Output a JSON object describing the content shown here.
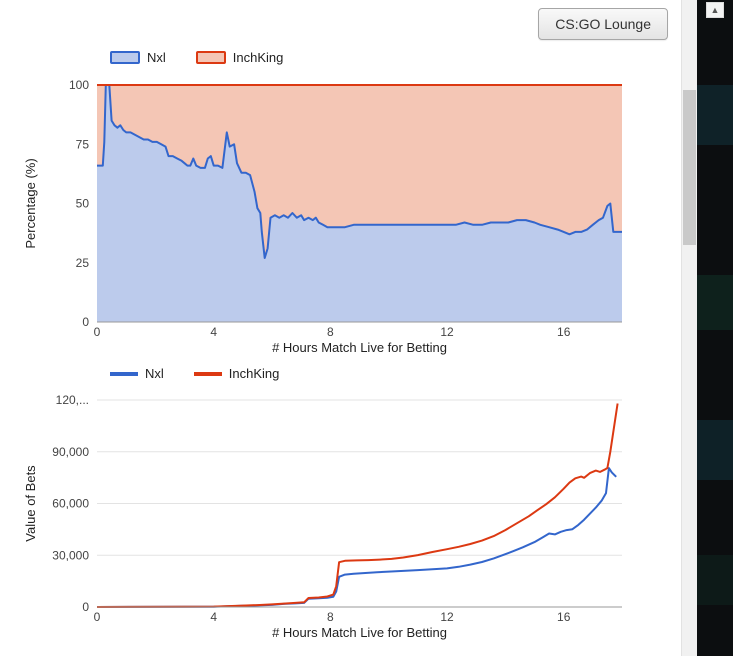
{
  "header": {
    "lounge_button": "CS:GO Lounge"
  },
  "scrollbar": {
    "up_arrow": "▲"
  },
  "chart_data": [
    {
      "name": "percentage",
      "type": "area",
      "stacked_to_100": true,
      "title": "",
      "xlabel": "# Hours Match Live for Betting",
      "ylabel": "Percentage (%)",
      "x_range": [
        0,
        18
      ],
      "y_range": [
        0,
        100
      ],
      "legend_position": "top",
      "grid": true,
      "x_ticks": [
        {
          "v": 0,
          "label": "0"
        },
        {
          "v": 4,
          "label": "4"
        },
        {
          "v": 8,
          "label": "8"
        },
        {
          "v": 12,
          "label": "12"
        },
        {
          "v": 16,
          "label": "16"
        }
      ],
      "y_ticks": [
        {
          "v": 0,
          "label": "0"
        },
        {
          "v": 25,
          "label": "25"
        },
        {
          "v": 50,
          "label": "50"
        },
        {
          "v": 75,
          "label": "75"
        },
        {
          "v": 100,
          "label": "100"
        }
      ],
      "series": [
        {
          "name": "Nxl",
          "color": "#3366cc",
          "fill": "#bccbec",
          "points": [
            [
              0,
              66
            ],
            [
              0.2,
              66
            ],
            [
              0.25,
              76
            ],
            [
              0.3,
              100
            ],
            [
              0.42,
              100
            ],
            [
              0.5,
              85
            ],
            [
              0.6,
              83
            ],
            [
              0.7,
              82
            ],
            [
              0.8,
              83
            ],
            [
              0.9,
              81
            ],
            [
              1.0,
              80
            ],
            [
              1.15,
              80
            ],
            [
              1.3,
              79
            ],
            [
              1.45,
              78
            ],
            [
              1.6,
              77
            ],
            [
              1.75,
              77
            ],
            [
              1.9,
              76
            ],
            [
              2.05,
              76
            ],
            [
              2.2,
              75
            ],
            [
              2.35,
              74
            ],
            [
              2.45,
              70
            ],
            [
              2.6,
              70
            ],
            [
              2.75,
              69
            ],
            [
              2.9,
              68
            ],
            [
              3.0,
              67
            ],
            [
              3.1,
              66
            ],
            [
              3.2,
              66
            ],
            [
              3.3,
              69
            ],
            [
              3.4,
              66
            ],
            [
              3.55,
              65
            ],
            [
              3.7,
              65
            ],
            [
              3.8,
              69
            ],
            [
              3.9,
              70
            ],
            [
              4.0,
              66
            ],
            [
              4.15,
              66
            ],
            [
              4.3,
              65
            ],
            [
              4.45,
              80
            ],
            [
              4.55,
              74
            ],
            [
              4.7,
              75
            ],
            [
              4.8,
              67
            ],
            [
              4.95,
              63
            ],
            [
              5.1,
              63
            ],
            [
              5.25,
              62
            ],
            [
              5.4,
              55
            ],
            [
              5.5,
              48
            ],
            [
              5.6,
              46
            ],
            [
              5.65,
              38
            ],
            [
              5.75,
              27
            ],
            [
              5.85,
              31
            ],
            [
              5.95,
              44
            ],
            [
              6.1,
              45
            ],
            [
              6.25,
              44
            ],
            [
              6.4,
              45
            ],
            [
              6.55,
              44
            ],
            [
              6.7,
              46
            ],
            [
              6.85,
              44
            ],
            [
              7.0,
              45
            ],
            [
              7.1,
              43
            ],
            [
              7.25,
              44
            ],
            [
              7.4,
              43
            ],
            [
              7.5,
              44
            ],
            [
              7.6,
              42
            ],
            [
              7.75,
              41
            ],
            [
              7.9,
              40
            ],
            [
              8.2,
              40
            ],
            [
              8.5,
              40
            ],
            [
              8.8,
              41
            ],
            [
              9.2,
              41
            ],
            [
              9.6,
              41
            ],
            [
              10,
              41
            ],
            [
              10.5,
              41
            ],
            [
              11,
              41
            ],
            [
              11.5,
              41
            ],
            [
              12,
              41
            ],
            [
              12.3,
              41
            ],
            [
              12.6,
              42
            ],
            [
              12.9,
              41
            ],
            [
              13.2,
              41
            ],
            [
              13.5,
              42
            ],
            [
              13.8,
              42
            ],
            [
              14.1,
              42
            ],
            [
              14.4,
              43
            ],
            [
              14.7,
              43
            ],
            [
              15,
              42
            ],
            [
              15.2,
              41
            ],
            [
              15.5,
              40
            ],
            [
              15.8,
              39
            ],
            [
              16,
              38
            ],
            [
              16.2,
              37
            ],
            [
              16.4,
              38
            ],
            [
              16.6,
              38
            ],
            [
              16.8,
              39
            ],
            [
              17,
              41
            ],
            [
              17.2,
              43
            ],
            [
              17.35,
              44
            ],
            [
              17.5,
              49
            ],
            [
              17.6,
              50
            ],
            [
              17.7,
              38
            ],
            [
              18,
              38
            ]
          ]
        },
        {
          "name": "InchKing",
          "color": "#dc3912",
          "fill": "#f4c6b5",
          "points": [
            [
              0,
              100
            ],
            [
              18,
              100
            ]
          ]
        }
      ]
    },
    {
      "name": "value-of-bets",
      "type": "line",
      "title": "",
      "xlabel": "# Hours Match Live for Betting",
      "ylabel": "Value of Bets",
      "x_range": [
        0,
        18
      ],
      "y_range": [
        0,
        120000
      ],
      "legend_position": "top",
      "grid": true,
      "x_ticks": [
        {
          "v": 0,
          "label": "0"
        },
        {
          "v": 4,
          "label": "4"
        },
        {
          "v": 8,
          "label": "8"
        },
        {
          "v": 12,
          "label": "12"
        },
        {
          "v": 16,
          "label": "16"
        }
      ],
      "y_ticks": [
        {
          "v": 0,
          "label": "0"
        },
        {
          "v": 30000,
          "label": "30,000"
        },
        {
          "v": 60000,
          "label": "60,000"
        },
        {
          "v": 90000,
          "label": "90,000"
        },
        {
          "v": 120000,
          "label": "120,..."
        }
      ],
      "series": [
        {
          "name": "Nxl",
          "color": "#3366cc",
          "points": [
            [
              0,
              0
            ],
            [
              3,
              100
            ],
            [
              4,
              200
            ],
            [
              4.5,
              400
            ],
            [
              5,
              700
            ],
            [
              5.5,
              900
            ],
            [
              6,
              1200
            ],
            [
              6.4,
              1800
            ],
            [
              6.8,
              2100
            ],
            [
              7.1,
              2400
            ],
            [
              7.25,
              4800
            ],
            [
              7.6,
              5100
            ],
            [
              7.9,
              5400
            ],
            [
              8.1,
              5900
            ],
            [
              8.2,
              9000
            ],
            [
              8.3,
              17500
            ],
            [
              8.5,
              18800
            ],
            [
              8.8,
              19300
            ],
            [
              9.2,
              19700
            ],
            [
              9.6,
              20100
            ],
            [
              10,
              20500
            ],
            [
              10.5,
              20900
            ],
            [
              11,
              21400
            ],
            [
              11.5,
              21900
            ],
            [
              12,
              22400
            ],
            [
              12.4,
              23300
            ],
            [
              12.8,
              24600
            ],
            [
              13.2,
              26100
            ],
            [
              13.6,
              28200
            ],
            [
              14,
              30600
            ],
            [
              14.3,
              32600
            ],
            [
              14.6,
              34600
            ],
            [
              15,
              37600
            ],
            [
              15.3,
              40600
            ],
            [
              15.5,
              42600
            ],
            [
              15.7,
              42100
            ],
            [
              15.9,
              43600
            ],
            [
              16.1,
              44600
            ],
            [
              16.3,
              45100
            ],
            [
              16.5,
              47600
            ],
            [
              16.7,
              50600
            ],
            [
              16.9,
              54100
            ],
            [
              17.1,
              57600
            ],
            [
              17.3,
              61600
            ],
            [
              17.45,
              66000
            ],
            [
              17.55,
              80500
            ],
            [
              17.65,
              78000
            ],
            [
              17.8,
              75500
            ]
          ]
        },
        {
          "name": "InchKing",
          "color": "#dc3912",
          "points": [
            [
              0,
              0
            ],
            [
              3,
              120
            ],
            [
              4,
              250
            ],
            [
              4.5,
              500
            ],
            [
              5,
              800
            ],
            [
              5.5,
              1100
            ],
            [
              6,
              1500
            ],
            [
              6.4,
              2000
            ],
            [
              6.8,
              2400
            ],
            [
              7.1,
              2700
            ],
            [
              7.25,
              5200
            ],
            [
              7.6,
              5500
            ],
            [
              7.9,
              6100
            ],
            [
              8.1,
              7200
            ],
            [
              8.2,
              12000
            ],
            [
              8.3,
              26000
            ],
            [
              8.5,
              26800
            ],
            [
              8.9,
              27000
            ],
            [
              9.3,
              27200
            ],
            [
              9.7,
              27500
            ],
            [
              10.1,
              27900
            ],
            [
              10.5,
              28700
            ],
            [
              11,
              30100
            ],
            [
              11.5,
              31900
            ],
            [
              12,
              33500
            ],
            [
              12.4,
              34900
            ],
            [
              12.8,
              36500
            ],
            [
              13.2,
              38500
            ],
            [
              13.6,
              41100
            ],
            [
              14,
              44600
            ],
            [
              14.4,
              48600
            ],
            [
              14.8,
              52600
            ],
            [
              15.1,
              56100
            ],
            [
              15.4,
              59600
            ],
            [
              15.7,
              63600
            ],
            [
              16,
              68600
            ],
            [
              16.2,
              72100
            ],
            [
              16.4,
              74600
            ],
            [
              16.6,
              75600
            ],
            [
              16.7,
              74900
            ],
            [
              16.9,
              77600
            ],
            [
              17.1,
              79100
            ],
            [
              17.25,
              78300
            ],
            [
              17.4,
              79600
            ],
            [
              17.5,
              80600
            ],
            [
              17.6,
              90000
            ],
            [
              17.85,
              118000
            ]
          ]
        }
      ]
    }
  ]
}
